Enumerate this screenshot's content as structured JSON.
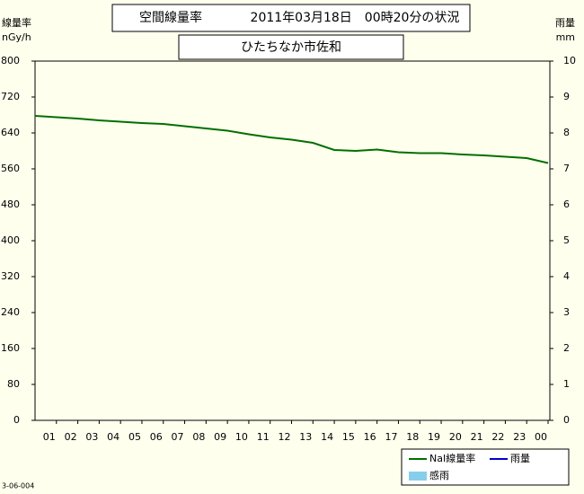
{
  "chart_data": {
    "type": "line",
    "title": "空間線量率",
    "subtitle": "2011年03月18日　00時20分の状況",
    "location": "ひたちなか市佐和",
    "y_label": "線量率",
    "y_unit": "nGy/h",
    "y2_label": "雨量",
    "y2_unit": "mm",
    "footer": "3-06-004",
    "categories": [
      null,
      "01",
      "02",
      "03",
      "04",
      "05",
      "06",
      "07",
      "08",
      "09",
      "10",
      "11",
      "12",
      "13",
      "14",
      "15",
      "16",
      "17",
      "18",
      "19",
      "20",
      "21",
      "22",
      "23",
      "00"
    ],
    "series": [
      {
        "name": "NaI線量率",
        "color": "#007000",
        "values": [
          678,
          675,
          672,
          668,
          665,
          662,
          660,
          655,
          650,
          645,
          637,
          630,
          625,
          618,
          602,
          600,
          603,
          597,
          595,
          595,
          592,
          590,
          587,
          584,
          573
        ]
      },
      {
        "name": "雨量",
        "color": "#0000cc",
        "axis": "y2",
        "values": [
          null,
          null,
          null,
          null,
          null,
          null,
          null,
          null,
          null,
          null,
          null,
          null,
          null,
          null,
          null,
          null,
          null,
          null,
          null,
          null,
          null,
          null,
          null,
          null,
          null
        ]
      },
      {
        "name": "感雨",
        "color": "#87ceeb",
        "axis": "y2",
        "values": [
          null,
          null,
          null,
          null,
          null,
          null,
          null,
          null,
          null,
          null,
          null,
          null,
          null,
          null,
          null,
          null,
          null,
          null,
          null,
          null,
          null,
          null,
          null,
          null,
          null
        ]
      }
    ],
    "ylim": [
      0,
      800
    ],
    "yticks": [
      0,
      80,
      160,
      240,
      320,
      400,
      480,
      560,
      640,
      720,
      800
    ],
    "y2lim": [
      0,
      10
    ],
    "y2ticks": [
      0,
      1,
      2,
      3,
      4,
      5,
      6,
      7,
      8,
      9,
      10
    ]
  }
}
